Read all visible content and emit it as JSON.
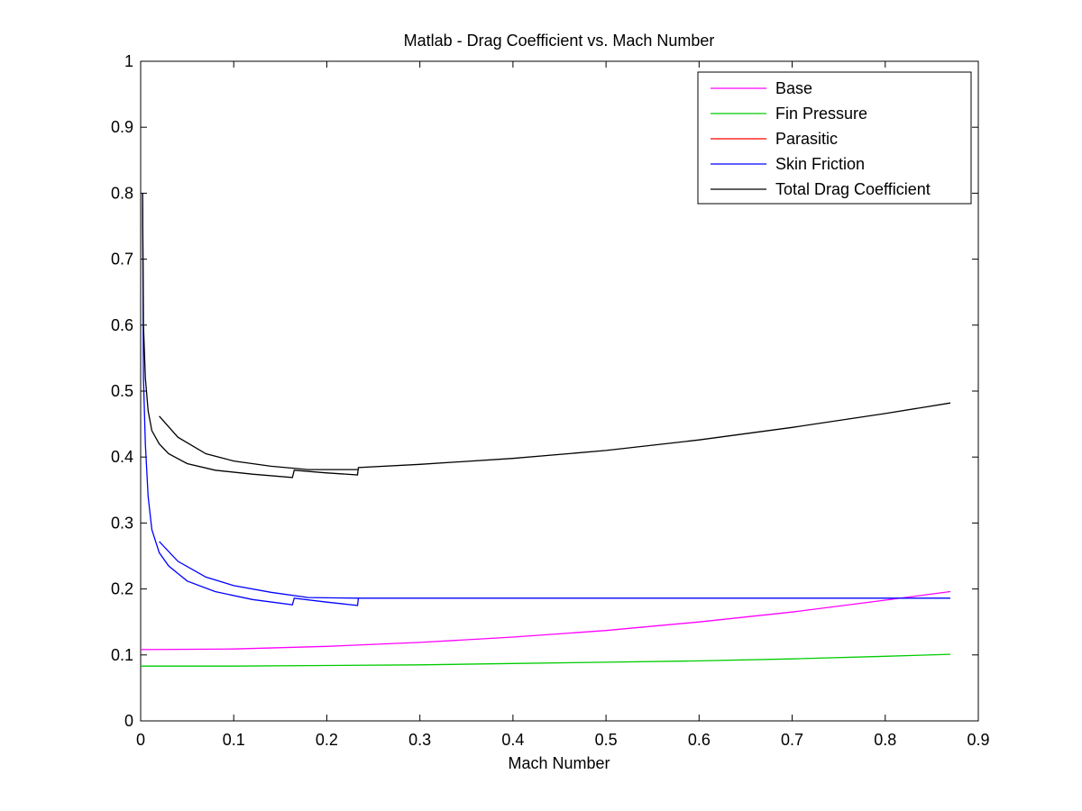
{
  "chart_data": {
    "type": "line",
    "title": "Matlab - Drag Coefficient vs. Mach Number",
    "xlabel": "Mach Number",
    "ylabel": "",
    "xlim": [
      0,
      0.9
    ],
    "ylim": [
      0,
      1
    ],
    "xticks": [
      0,
      0.1,
      0.2,
      0.3,
      0.4,
      0.5,
      0.6,
      0.7,
      0.8,
      0.9
    ],
    "yticks": [
      0,
      0.1,
      0.2,
      0.3,
      0.4,
      0.5,
      0.6,
      0.7,
      0.8,
      0.9,
      1
    ],
    "xtick_labels": [
      "0",
      "0.1",
      "0.2",
      "0.3",
      "0.4",
      "0.5",
      "0.6",
      "0.7",
      "0.8",
      "0.9"
    ],
    "ytick_labels": [
      "0",
      "0.1",
      "0.2",
      "0.3",
      "0.4",
      "0.5",
      "0.6",
      "0.7",
      "0.8",
      "0.9",
      "1"
    ],
    "grid": false,
    "legend_position": "top-right",
    "series": [
      {
        "name": "Base",
        "color": "#ff00ff",
        "x": [
          0,
          0.1,
          0.2,
          0.3,
          0.4,
          0.5,
          0.6,
          0.7,
          0.8,
          0.87
        ],
        "y": [
          0.108,
          0.109,
          0.113,
          0.119,
          0.127,
          0.137,
          0.15,
          0.165,
          0.183,
          0.196
        ]
      },
      {
        "name": "Fin Pressure",
        "color": "#00cc00",
        "x": [
          0,
          0.1,
          0.2,
          0.3,
          0.4,
          0.5,
          0.6,
          0.7,
          0.8,
          0.87
        ],
        "y": [
          0.083,
          0.083,
          0.084,
          0.085,
          0.087,
          0.089,
          0.091,
          0.094,
          0.098,
          0.101
        ]
      },
      {
        "name": "Parasitic",
        "color": "#ff0000",
        "x": [],
        "y": []
      },
      {
        "name": "Skin Friction",
        "color": "#0000ff",
        "x": [
          0.002,
          0.003,
          0.005,
          0.008,
          0.012,
          0.02,
          0.03,
          0.05,
          0.08,
          0.12,
          0.163,
          0.165,
          0.2,
          0.233,
          0.234,
          0.4,
          0.6,
          0.87
        ],
        "y": [
          0.8,
          0.52,
          0.42,
          0.34,
          0.29,
          0.255,
          0.235,
          0.212,
          0.196,
          0.184,
          0.176,
          0.186,
          0.18,
          0.175,
          0.186,
          0.186,
          0.186,
          0.186
        ]
      },
      {
        "name": "Total Drag Coefficient",
        "color": "#000000",
        "x": [
          0.002,
          0.003,
          0.005,
          0.008,
          0.012,
          0.02,
          0.03,
          0.05,
          0.08,
          0.12,
          0.163,
          0.165,
          0.2,
          0.233,
          0.234,
          0.3,
          0.4,
          0.5,
          0.6,
          0.7,
          0.8,
          0.87
        ],
        "y": [
          0.8,
          0.6,
          0.52,
          0.47,
          0.44,
          0.42,
          0.405,
          0.39,
          0.38,
          0.374,
          0.369,
          0.38,
          0.376,
          0.373,
          0.384,
          0.389,
          0.398,
          0.41,
          0.426,
          0.445,
          0.466,
          0.482
        ]
      }
    ],
    "overlay": {
      "name": "upper-branch",
      "note_color_series": [
        "Skin Friction",
        "Total Drag Coefficient"
      ],
      "skin_x": [
        0.02,
        0.04,
        0.07,
        0.1,
        0.14,
        0.18,
        0.234
      ],
      "skin_y": [
        0.272,
        0.242,
        0.218,
        0.205,
        0.195,
        0.187,
        0.186
      ],
      "total_x": [
        0.02,
        0.04,
        0.07,
        0.1,
        0.14,
        0.18,
        0.234
      ],
      "total_y": [
        0.462,
        0.43,
        0.405,
        0.394,
        0.386,
        0.381,
        0.381
      ]
    }
  }
}
